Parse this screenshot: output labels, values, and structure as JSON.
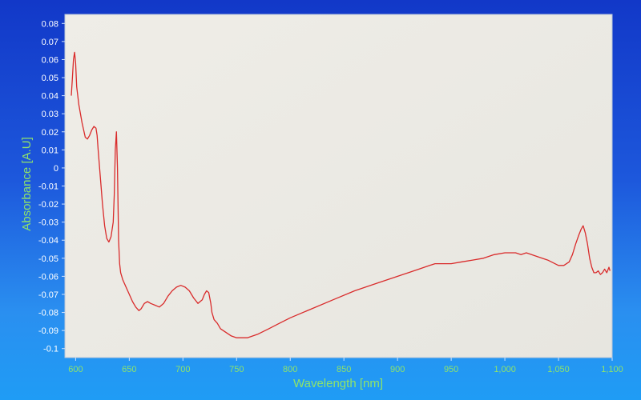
{
  "chart_data": {
    "type": "line",
    "title": "",
    "xlabel": "Wavelength [nm]",
    "ylabel": "Absorbance [A.U]",
    "xlim": [
      590,
      1100
    ],
    "ylim": [
      -0.105,
      0.085
    ],
    "xticks": [
      600,
      650,
      700,
      750,
      800,
      850,
      900,
      950,
      1000,
      1050,
      1100
    ],
    "xtick_labels": [
      "600",
      "650",
      "700",
      "750",
      "800",
      "850",
      "900",
      "950",
      "1,000",
      "1,050",
      "1,100"
    ],
    "yticks": [
      0.08,
      0.07,
      0.06,
      0.05,
      0.04,
      0.03,
      0.02,
      0.01,
      0,
      -0.01,
      -0.02,
      -0.03,
      -0.04,
      -0.05,
      -0.06,
      -0.07,
      -0.08,
      -0.09,
      -0.1
    ],
    "ytick_labels": [
      "0.08",
      "0.07",
      "0.06",
      "0.05",
      "0.04",
      "0.03",
      "0.02",
      "0.01",
      "0",
      "-0.01",
      "-0.02",
      "-0.03",
      "-0.04",
      "-0.05",
      "-0.06",
      "-0.07",
      "-0.08",
      "-0.09",
      "-0.1"
    ],
    "grid": false,
    "legend": "none",
    "colors": {
      "line": "#d92b2b",
      "plot_bg": "#eceae4",
      "axis_text": "#8fe36a",
      "tick_text": "#ffffff"
    },
    "series": [
      {
        "x": [
          596,
          597,
          598,
          599,
          600,
          601,
          603,
          606,
          609,
          611,
          613,
          615,
          617,
          619,
          620,
          621,
          623,
          625,
          627,
          629,
          631,
          633,
          635,
          636,
          637,
          638,
          639,
          640,
          641,
          642,
          644,
          647,
          650,
          653,
          656,
          659,
          661,
          664,
          667,
          670,
          674,
          678,
          682,
          686,
          690,
          694,
          698,
          702,
          706,
          710,
          714,
          718,
          720,
          722,
          724,
          726,
          727,
          729,
          732,
          735,
          740,
          745,
          750,
          755,
          760,
          770,
          780,
          790,
          800,
          820,
          840,
          860,
          880,
          900,
          920,
          930,
          935,
          940,
          950,
          960,
          970,
          980,
          990,
          1000,
          1005,
          1010,
          1015,
          1020,
          1030,
          1040,
          1050,
          1055,
          1060,
          1063,
          1066,
          1069,
          1071,
          1073,
          1075,
          1077,
          1079,
          1081,
          1083,
          1085,
          1087,
          1089,
          1091,
          1093,
          1095,
          1097,
          1098
        ],
        "y": [
          0.04,
          0.05,
          0.06,
          0.064,
          0.058,
          0.045,
          0.035,
          0.025,
          0.017,
          0.016,
          0.018,
          0.021,
          0.023,
          0.022,
          0.018,
          0.01,
          -0.005,
          -0.02,
          -0.032,
          -0.039,
          -0.041,
          -0.038,
          -0.03,
          -0.015,
          0.01,
          0.02,
          0.0,
          -0.04,
          -0.053,
          -0.058,
          -0.062,
          -0.066,
          -0.07,
          -0.074,
          -0.077,
          -0.079,
          -0.078,
          -0.075,
          -0.074,
          -0.075,
          -0.076,
          -0.077,
          -0.075,
          -0.071,
          -0.068,
          -0.066,
          -0.065,
          -0.066,
          -0.068,
          -0.072,
          -0.075,
          -0.073,
          -0.07,
          -0.068,
          -0.069,
          -0.075,
          -0.08,
          -0.084,
          -0.086,
          -0.089,
          -0.091,
          -0.093,
          -0.094,
          -0.094,
          -0.094,
          -0.092,
          -0.089,
          -0.086,
          -0.083,
          -0.078,
          -0.073,
          -0.068,
          -0.064,
          -0.06,
          -0.056,
          -0.054,
          -0.053,
          -0.053,
          -0.053,
          -0.052,
          -0.051,
          -0.05,
          -0.048,
          -0.047,
          -0.047,
          -0.047,
          -0.048,
          -0.047,
          -0.049,
          -0.051,
          -0.054,
          -0.054,
          -0.052,
          -0.048,
          -0.042,
          -0.037,
          -0.034,
          -0.032,
          -0.036,
          -0.042,
          -0.05,
          -0.055,
          -0.058,
          -0.058,
          -0.057,
          -0.059,
          -0.058,
          -0.056,
          -0.058,
          -0.055,
          -0.057
        ]
      }
    ]
  }
}
